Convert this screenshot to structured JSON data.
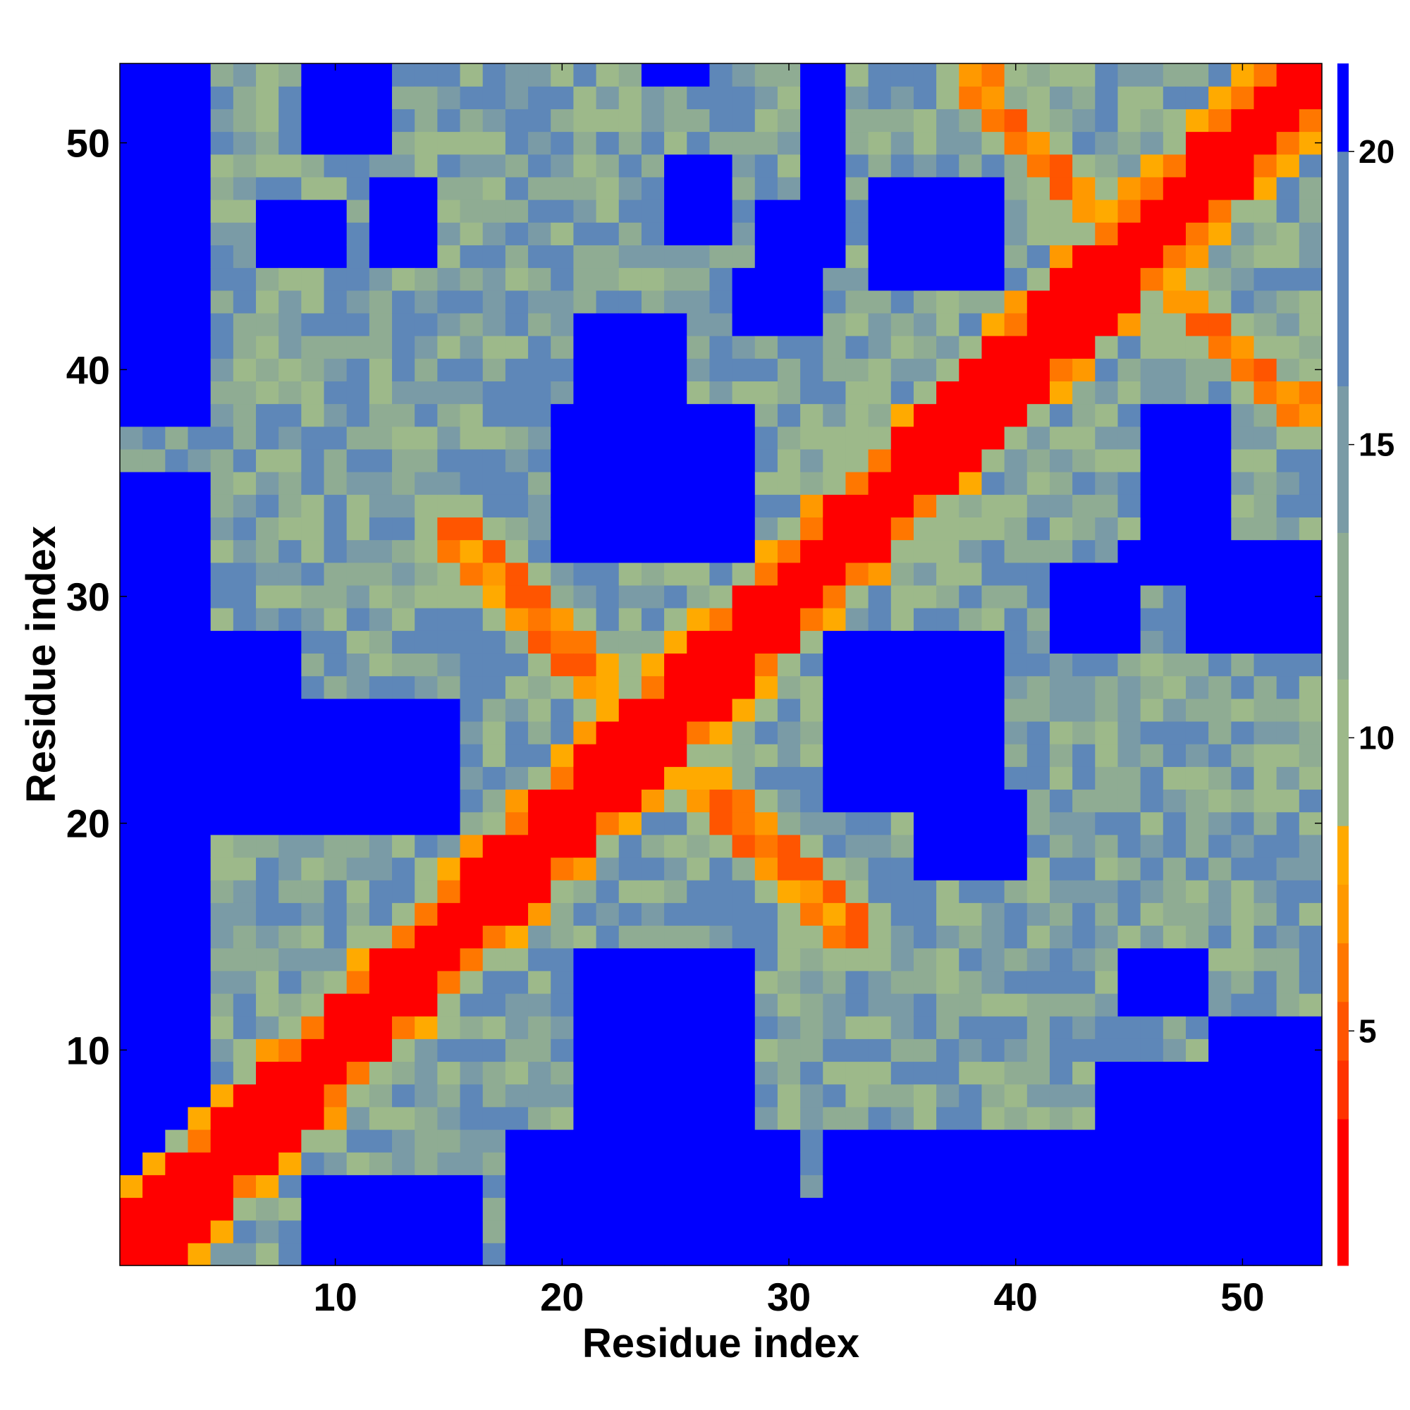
{
  "chart_data": {
    "type": "heatmap",
    "title": "",
    "xlabel": "Residue index",
    "ylabel": "Residue index",
    "n": 53,
    "xlim": [
      0.5,
      53.5
    ],
    "ylim": [
      0.5,
      53.5
    ],
    "x_ticks": [
      10,
      20,
      30,
      40,
      50
    ],
    "y_ticks": [
      10,
      20,
      30,
      40,
      50
    ],
    "colorbar": {
      "min": 1,
      "max": 21.5,
      "ticks": [
        5,
        10,
        15,
        20
      ],
      "colors": [
        {
          "max": 3.5,
          "color": "#ff0000"
        },
        {
          "max": 4.5,
          "color": "#ff3300"
        },
        {
          "max": 5.5,
          "color": "#ff5500"
        },
        {
          "max": 6.5,
          "color": "#ff7700"
        },
        {
          "max": 7.5,
          "color": "#ff9900"
        },
        {
          "max": 8.5,
          "color": "#ffaa00"
        },
        {
          "max": 11.0,
          "color": "#9db98a"
        },
        {
          "max": 13.5,
          "color": "#8fac93"
        },
        {
          "max": 16.0,
          "color": "#7a9ba6"
        },
        {
          "max": 20.0,
          "color": "#5e87b8"
        },
        {
          "max": 99,
          "color": "#0000ff"
        }
      ]
    },
    "diagonal_band": {
      "red_width": 2.2,
      "orange_width": 3.2
    },
    "secondary_contacts": [
      {
        "from": [
          14,
          15
        ],
        "to": [
          25,
          26
        ],
        "width": 1.2
      },
      {
        "from": [
          15,
          14
        ],
        "to": [
          26,
          25
        ],
        "width": 1.2
      },
      {
        "from": [
          26,
          22
        ],
        "to": [
          33,
          15
        ],
        "width": 1.1
      },
      {
        "from": [
          22,
          26
        ],
        "to": [
          15,
          33
        ],
        "width": 1.1
      },
      {
        "from": [
          46,
          44
        ],
        "to": [
          53,
          38
        ],
        "width": 1.1
      },
      {
        "from": [
          44,
          46
        ],
        "to": [
          38,
          53
        ],
        "width": 1.1
      }
    ],
    "blue_regions": [
      [
        1,
        4,
        1,
        35
      ],
      [
        1,
        4,
        38,
        53
      ],
      [
        18,
        30,
        1,
        6
      ],
      [
        9,
        16,
        1,
        4
      ],
      [
        28,
        53,
        1,
        3
      ],
      [
        32,
        53,
        4,
        6
      ],
      [
        44,
        53,
        6,
        9
      ],
      [
        21,
        28,
        7,
        14
      ],
      [
        49,
        53,
        9,
        11
      ],
      [
        45,
        48,
        12,
        14
      ],
      [
        9,
        15,
        20,
        25
      ],
      [
        4,
        8,
        20,
        25
      ],
      [
        5,
        8,
        26,
        28
      ],
      [
        32,
        39,
        21,
        28
      ],
      [
        36,
        40,
        18,
        21
      ],
      [
        48,
        53,
        28,
        32
      ],
      [
        42,
        45,
        28,
        31
      ],
      [
        20,
        28,
        32,
        38
      ],
      [
        21,
        25,
        39,
        42
      ],
      [
        46,
        49,
        32,
        38
      ],
      [
        45,
        53,
        31,
        32
      ],
      [
        34,
        39,
        44,
        48
      ],
      [
        29,
        32,
        45,
        47
      ],
      [
        25,
        27,
        46,
        49
      ],
      [
        28,
        31,
        42,
        44
      ],
      [
        7,
        10,
        45,
        47
      ],
      [
        31,
        32,
        48,
        54
      ],
      [
        9,
        12,
        50,
        53
      ],
      [
        24,
        26,
        53,
        54
      ],
      [
        12,
        14,
        45,
        48
      ]
    ],
    "distance_model": {
      "near_scale": 1.0,
      "far_value": 14.5,
      "noise": 2.6,
      "seed": 7
    }
  }
}
